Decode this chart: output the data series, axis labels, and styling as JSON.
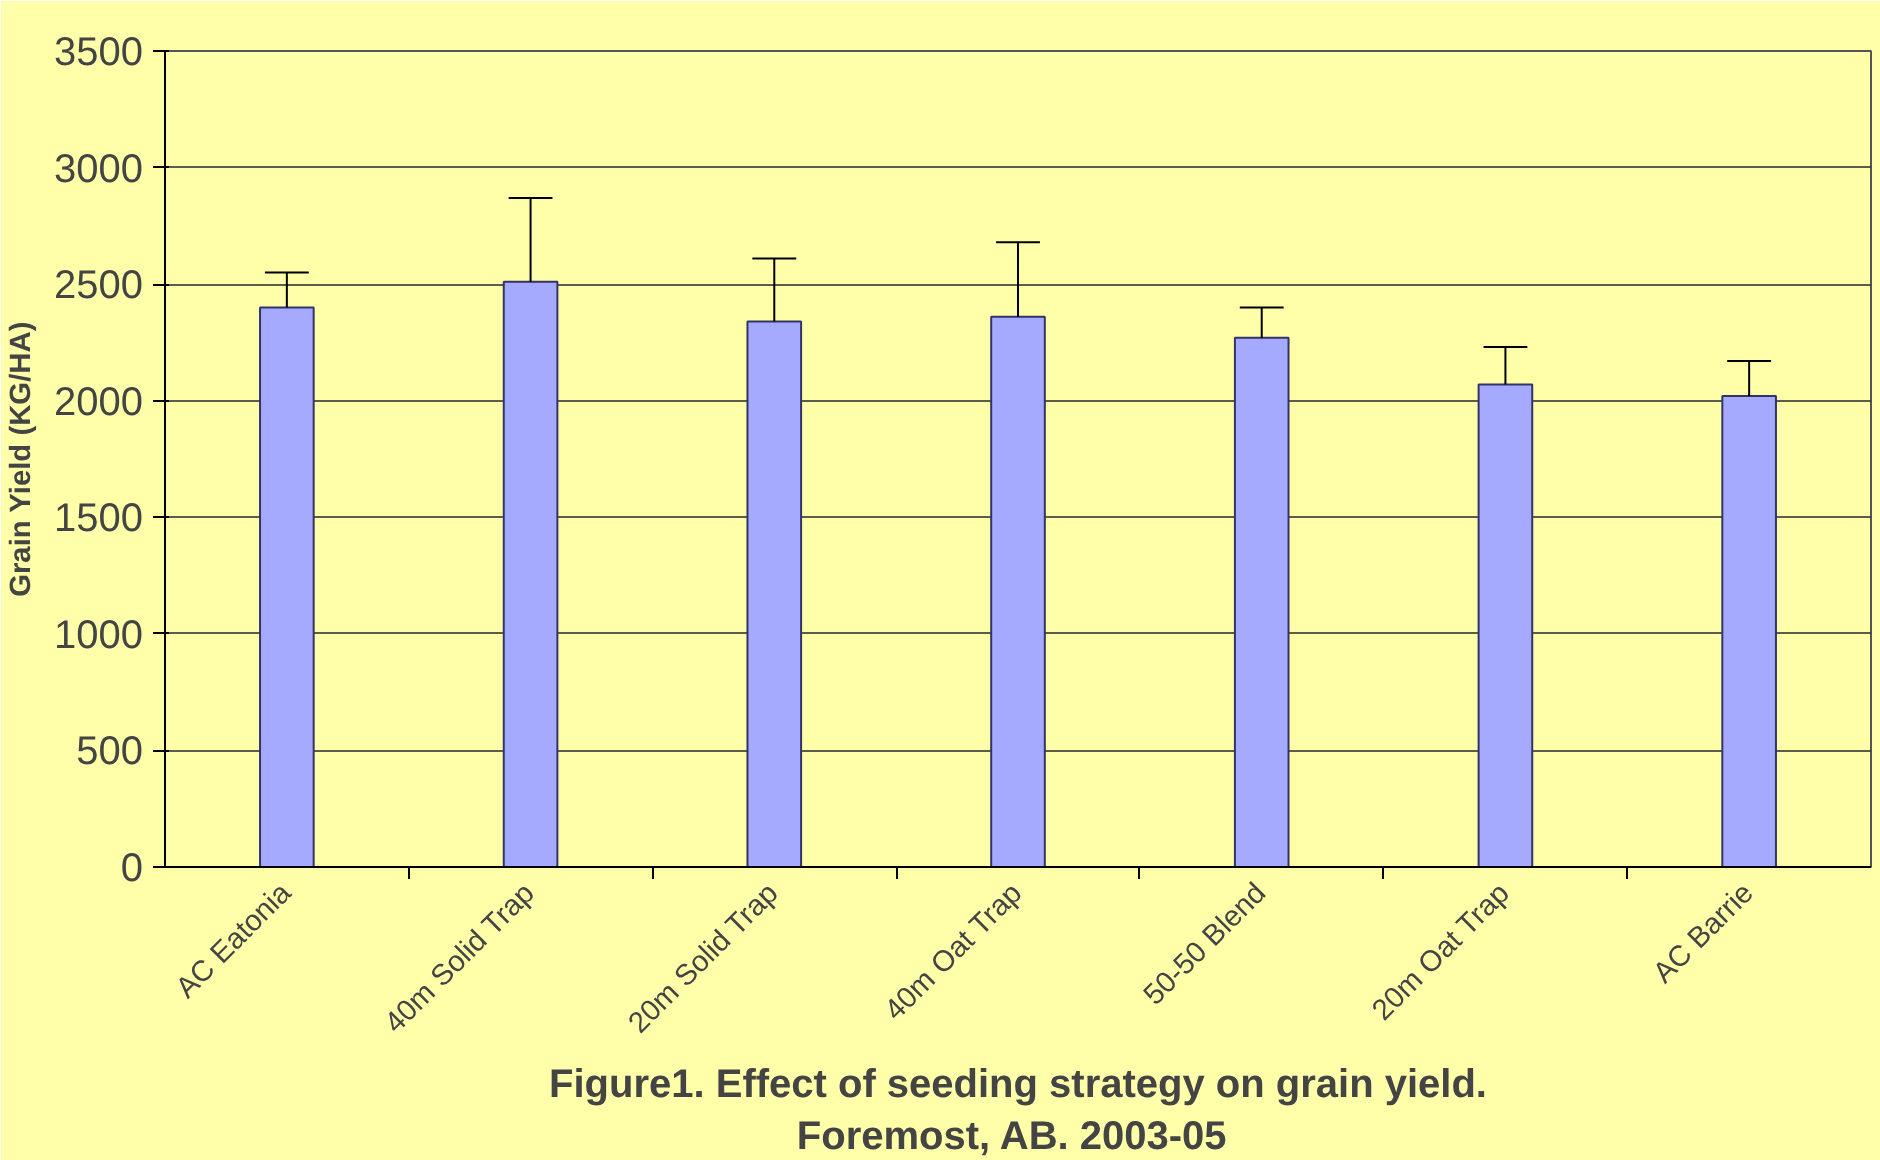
{
  "chart_data": {
    "type": "bar",
    "title": "Figure1. Effect of seeding strategy on grain yield.\nForemost, AB.  2003-05",
    "ylabel": "Grain Yield (KG/HA)",
    "categories": [
      "AC Eatonia",
      "40m Solid Trap",
      "20m Solid Trap",
      "40m Oat Trap",
      "50-50 Blend",
      "20m Oat Trap",
      "AC Barrie"
    ],
    "values": [
      2400,
      2510,
      2340,
      2360,
      2270,
      2070,
      2020
    ],
    "errors": [
      [
        2400,
        2550
      ],
      [
        2510,
        2870
      ],
      [
        2340,
        2610
      ],
      [
        2360,
        2680
      ],
      [
        2270,
        2400
      ],
      [
        2070,
        2230
      ],
      [
        2020,
        2170
      ]
    ],
    "color": "#a6aaff",
    "ylim": [
      0,
      3500
    ],
    "yticks": [
      0,
      500,
      1000,
      1500,
      2000,
      2500,
      3000,
      3500
    ],
    "grid": "y"
  }
}
